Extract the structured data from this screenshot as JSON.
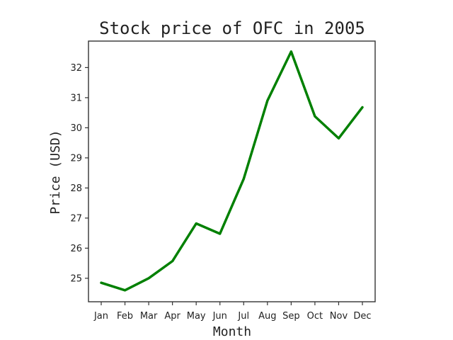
{
  "chart_data": {
    "type": "line",
    "title": "Stock price of OFC in 2005",
    "xlabel": "Month",
    "ylabel": "Price (USD)",
    "categories": [
      "Jan",
      "Feb",
      "Mar",
      "Apr",
      "May",
      "Jun",
      "Jul",
      "Aug",
      "Sep",
      "Oct",
      "Nov",
      "Dec"
    ],
    "series": [
      {
        "values": [
          24.85,
          24.6,
          25.0,
          25.57,
          26.82,
          26.48,
          28.3,
          30.9,
          32.53,
          30.38,
          29.65,
          30.68
        ]
      }
    ],
    "ylim": [
      24.22,
      32.88
    ],
    "yticks": [
      25,
      26,
      27,
      28,
      29,
      30,
      31,
      32
    ],
    "line_color": "#008000",
    "grid": false
  }
}
